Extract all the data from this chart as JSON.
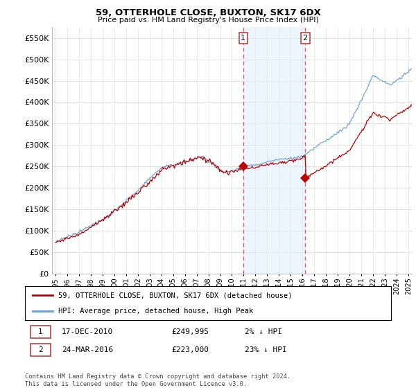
{
  "title": "59, OTTERHOLE CLOSE, BUXTON, SK17 6DX",
  "subtitle": "Price paid vs. HM Land Registry's House Price Index (HPI)",
  "ylabel_ticks": [
    "£0",
    "£50K",
    "£100K",
    "£150K",
    "£200K",
    "£250K",
    "£300K",
    "£350K",
    "£400K",
    "£450K",
    "£500K",
    "£550K"
  ],
  "ytick_values": [
    0,
    50000,
    100000,
    150000,
    200000,
    250000,
    300000,
    350000,
    400000,
    450000,
    500000,
    550000
  ],
  "ylim": [
    0,
    575000
  ],
  "xlim_start": 1994.7,
  "xlim_end": 2025.3,
  "hpi_color": "#5b9bd5",
  "price_color": "#c00000",
  "sale1_x": 2010.96,
  "sale1_y": 249995,
  "sale2_x": 2016.23,
  "sale2_y": 223000,
  "vline1_x": 2010.96,
  "vline2_x": 2016.23,
  "vline_color": "#e06060",
  "vline_alpha": 0.9,
  "shade_color": "#ddeeff",
  "shade_alpha": 0.5,
  "legend_line1": "59, OTTERHOLE CLOSE, BUXTON, SK17 6DX (detached house)",
  "legend_line2": "HPI: Average price, detached house, High Peak",
  "table_row1": [
    "1",
    "17-DEC-2010",
    "£249,995",
    "2% ↓ HPI"
  ],
  "table_row2": [
    "2",
    "24-MAR-2016",
    "£223,000",
    "23% ↓ HPI"
  ],
  "footnote": "Contains HM Land Registry data © Crown copyright and database right 2024.\nThis data is licensed under the Open Government Licence v3.0.",
  "background_color": "#ffffff",
  "grid_color": "#e0e0e0"
}
